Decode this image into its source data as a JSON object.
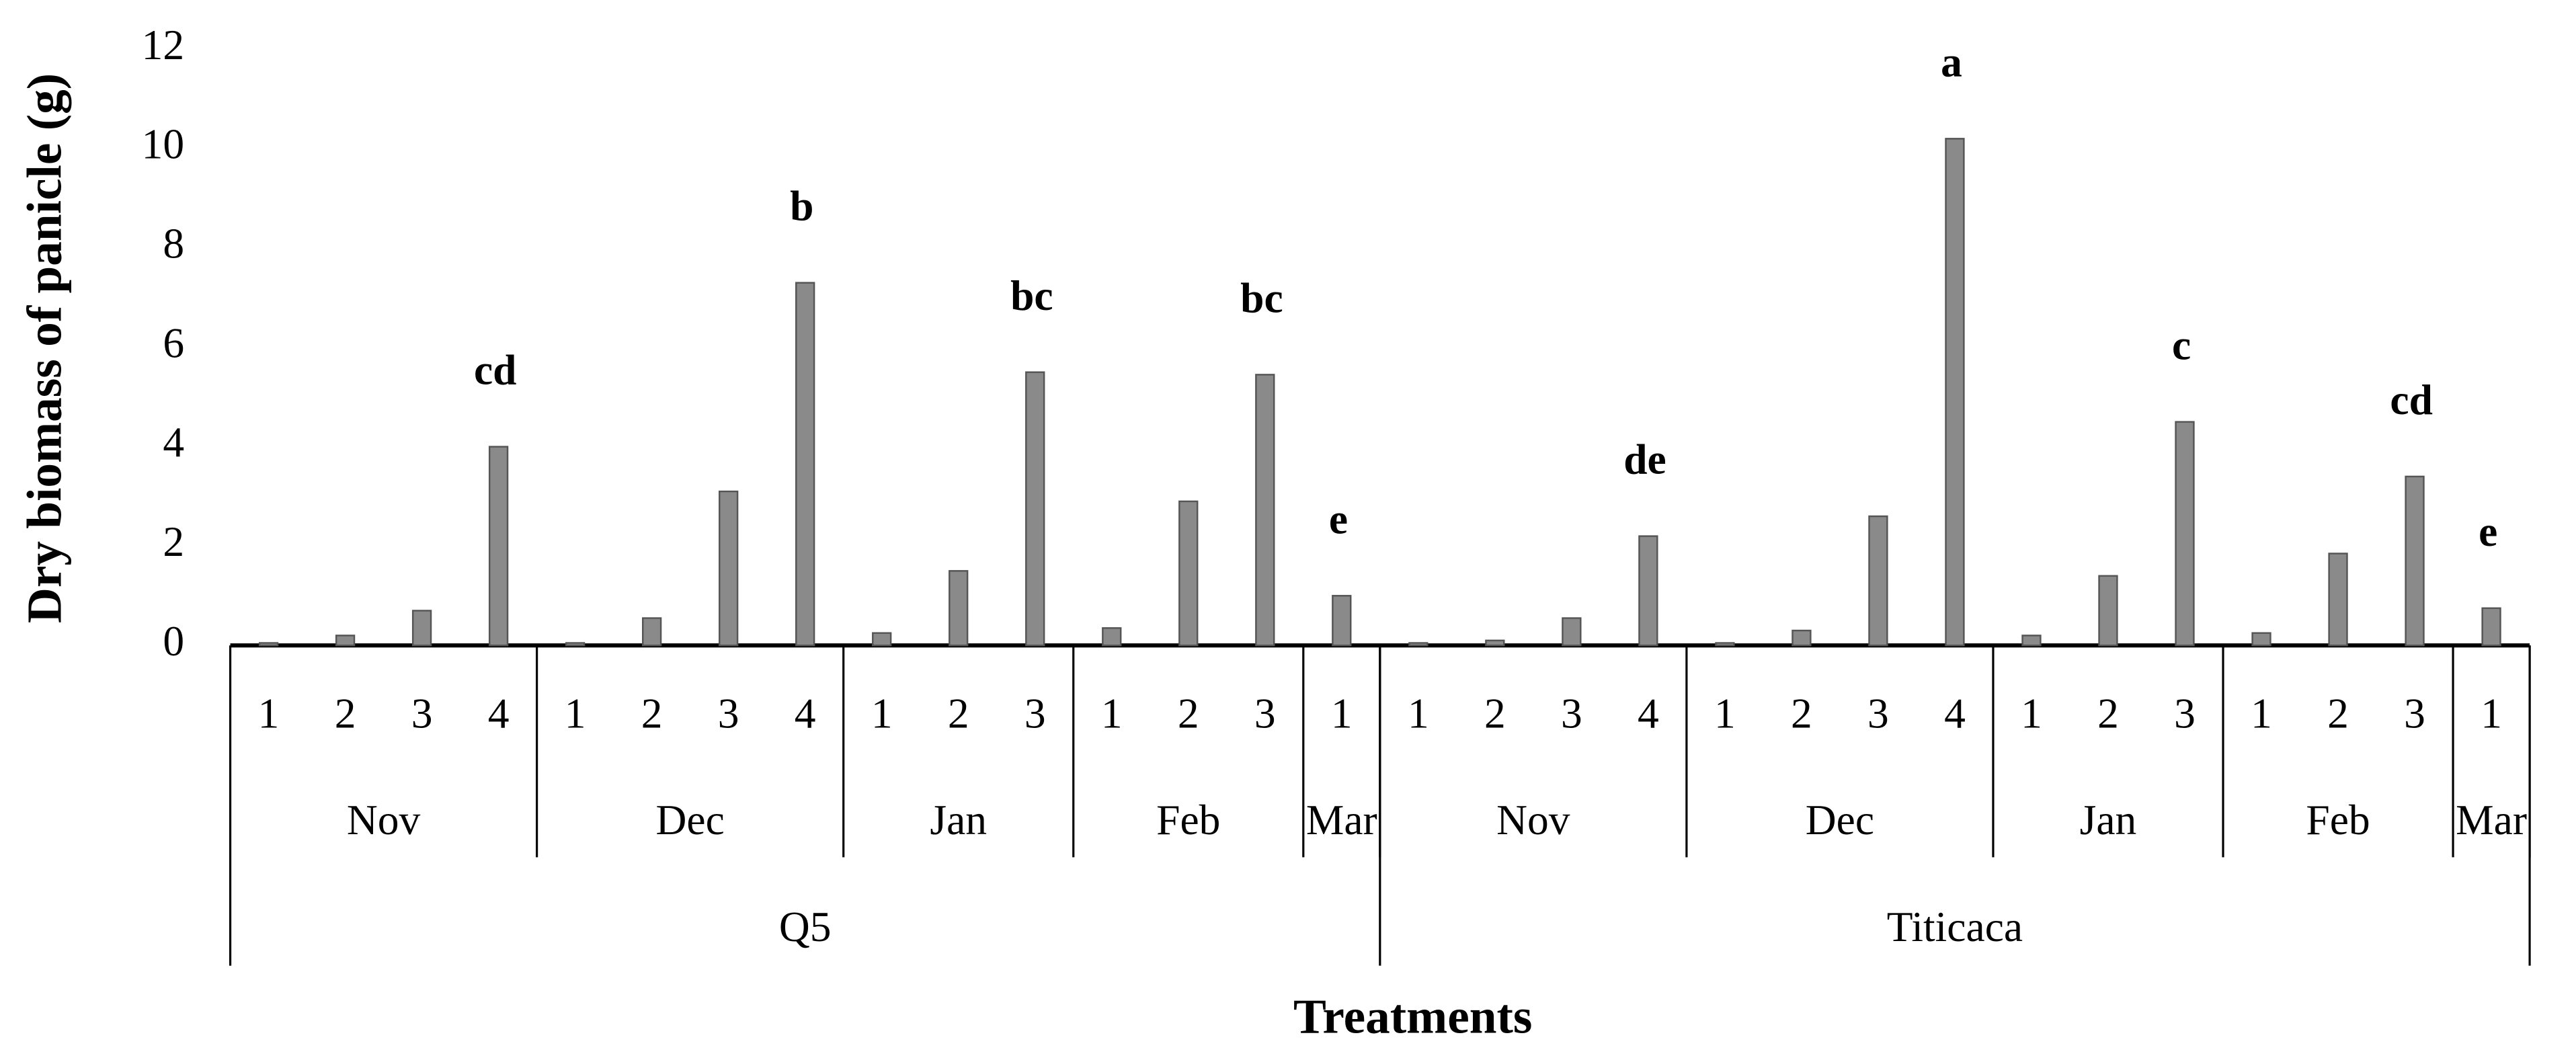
{
  "chart_data": {
    "type": "bar",
    "y_label": "Dry biomass of panicle (g)",
    "x_label": "Treatments",
    "categories": [
      "1",
      "2",
      "3",
      "4",
      "1",
      "2",
      "3",
      "4",
      "1",
      "2",
      "3",
      "1",
      "2",
      "3",
      "1",
      "1",
      "2",
      "3",
      "4",
      "1",
      "2",
      "3",
      "4",
      "1",
      "2",
      "3",
      "1",
      "2",
      "3",
      "1"
    ],
    "values": [
      0.05,
      0.2,
      0.7,
      4.0,
      0.05,
      0.55,
      3.1,
      7.3,
      0.25,
      1.5,
      5.5,
      0.35,
      2.9,
      5.45,
      1.0,
      0.05,
      0.1,
      0.55,
      2.2,
      0.05,
      0.3,
      2.6,
      10.2,
      0.2,
      1.4,
      4.5,
      0.25,
      1.85,
      3.4,
      0.75
    ],
    "annotations": [
      null,
      null,
      null,
      "cd",
      null,
      null,
      null,
      "b",
      null,
      null,
      "bc",
      null,
      null,
      "bc",
      "e",
      null,
      null,
      null,
      "de",
      null,
      null,
      null,
      "a",
      null,
      null,
      "c",
      null,
      null,
      "cd",
      "e"
    ],
    "groups": [
      {
        "name": "Nov",
        "size": 4
      },
      {
        "name": "Dec",
        "size": 4
      },
      {
        "name": "Jan",
        "size": 3
      },
      {
        "name": "Feb",
        "size": 3
      },
      {
        "name": "Mar",
        "size": 1
      },
      {
        "name": "Nov",
        "size": 4
      },
      {
        "name": "Dec",
        "size": 4
      },
      {
        "name": "Jan",
        "size": 3
      },
      {
        "name": "Feb",
        "size": 3
      },
      {
        "name": "Mar",
        "size": 1
      }
    ],
    "supergroups": [
      {
        "name": "Q5",
        "size": 15
      },
      {
        "name": "Titicaca",
        "size": 15
      }
    ],
    "color": "#8a8a8a",
    "ylim": [
      0,
      12
    ],
    "yticks": [
      0,
      2,
      4,
      6,
      8,
      10,
      12
    ],
    "grid": false
  }
}
